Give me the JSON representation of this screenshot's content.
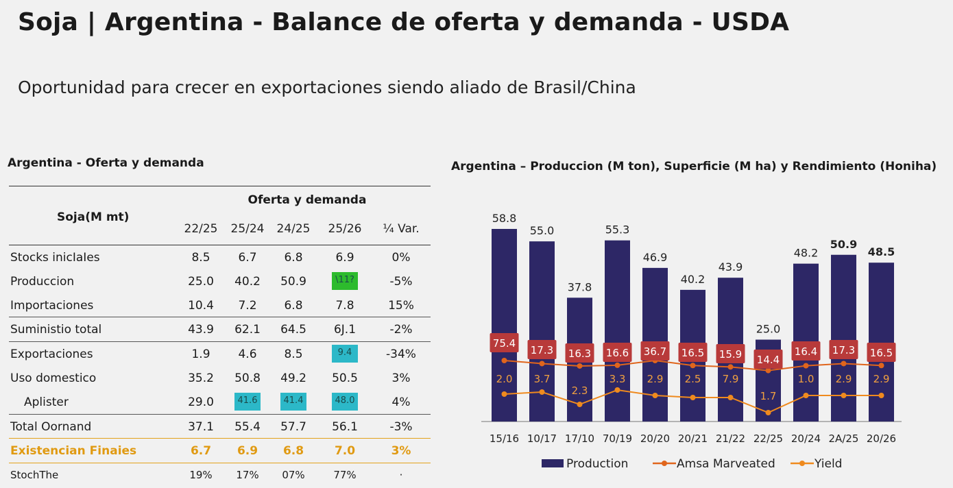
{
  "title": "Soja | Argentina - Balance de oferta y demanda - USDA",
  "subtitle": "Oportunidad para crecer en exportaciones siendo aliado de Brasil/China",
  "table": {
    "title": "Argentina - Oferta y demanda",
    "row_label_header": "Soja(M mt)",
    "group_header": "Oferta y demanda",
    "columns": [
      "22/25",
      "25/24",
      "24/25",
      "25/26",
      "¼ Var."
    ],
    "rows": [
      {
        "label": "Stocks inicIaIes",
        "values": [
          "8.5",
          "6.7",
          "6.8",
          "6.9",
          "0%"
        ]
      },
      {
        "label": "Produccion",
        "values": [
          "25.0",
          "40.2",
          "50.9",
          "\\11?",
          "-5%"
        ]
      },
      {
        "label": "Importaciones",
        "values": [
          "10.4",
          "7.2",
          "6.8",
          "7.8",
          "15%"
        ]
      },
      {
        "label": "Suministio total",
        "values": [
          "43.9",
          "62.1",
          "64.5",
          "6J.1",
          "-2%"
        ]
      },
      {
        "label": "Exportaciones",
        "values": [
          "1.9",
          "4.6",
          "8.5",
          "9.4",
          "-34%"
        ]
      },
      {
        "label": "Uso domestico",
        "values": [
          "35.2",
          "50.8",
          "49.2",
          "50.5",
          "3%"
        ]
      },
      {
        "label": "Aplister",
        "values": [
          "29.0",
          "41.6",
          "41.4",
          "48.0",
          "4%"
        ]
      },
      {
        "label": "Total Oornand",
        "values": [
          "37.1",
          "55.4",
          "57.7",
          "56.1",
          "-3%"
        ]
      },
      {
        "label": "Existencian Finaies",
        "values": [
          "6.7",
          "6.9",
          "6.8",
          "7.0",
          "3%"
        ]
      },
      {
        "label": "StochThe",
        "values": [
          "19%",
          "17%",
          "07%",
          "77%",
          "·"
        ]
      }
    ],
    "highlight_colors": {
      "green": "#2dbb2d",
      "teal": "#2cb8c8",
      "orange": "#e09a12"
    }
  },
  "chart_data": {
    "type": "bar",
    "title": "Argentina – Produccion (M ton), Superficie (M ha) y Rendimiento (Honiha)",
    "categories": [
      "15/16",
      "10/17",
      "17/10",
      "70/19",
      "20/20",
      "20/21",
      "21/22",
      "22/25",
      "20/24",
      "2A/25",
      "20/26"
    ],
    "series": [
      {
        "name": "Production",
        "kind": "bar",
        "color": "#2d2766",
        "values": [
          58.8,
          55.0,
          37.8,
          55.3,
          46.9,
          40.2,
          43.9,
          25.0,
          48.2,
          50.9,
          48.5
        ],
        "labels": [
          "58.8",
          "55.0",
          "37.8",
          "55.3",
          "46.9",
          "40.2",
          "43.9",
          "25.0",
          "48.2",
          "50.9",
          "48.5"
        ]
      },
      {
        "name": "Amsa Marveated",
        "kind": "line",
        "color": "#e0651c",
        "values": [
          75.4,
          17.3,
          16.3,
          16.6,
          36.7,
          16.5,
          15.9,
          14.4,
          16.4,
          17.3,
          16.5
        ],
        "labels": [
          "75.4",
          "17.3",
          "16.3",
          "16.6",
          "36.7",
          "16.5",
          "15.9",
          "14.4",
          "16.4",
          "17.3",
          "16.5"
        ]
      },
      {
        "name": "Yield",
        "kind": "line",
        "color": "#ef8a1e",
        "values": [
          2.0,
          3.7,
          2.3,
          3.3,
          2.9,
          2.5,
          7.9,
          1.7,
          1.0,
          2.9,
          2.9
        ],
        "labels": [
          "2.0",
          "3.7",
          "2.3",
          "3.3",
          "2.9",
          "2.5",
          "7.9",
          "1.7",
          "1.0",
          "2.9",
          "2.9"
        ]
      }
    ],
    "legend_position": "bottom",
    "grid": false
  }
}
